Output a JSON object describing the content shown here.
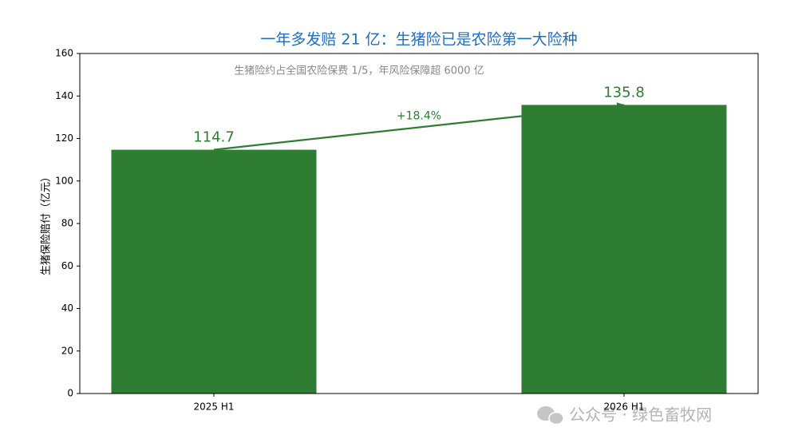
{
  "chart_data": {
    "type": "bar",
    "title": "一年多发赔 21 亿：生猪险已是农险第一大险种",
    "subtitle": "生猪险约占全国农险保费 1/5，年风险保障超 6000 亿",
    "y_label": "生猪保险赔付（亿元）",
    "categories": [
      "2025 H1",
      "2026 H1"
    ],
    "values": [
      114.7,
      135.8
    ],
    "color": "#2e7d32",
    "growth_label": "+18.4%",
    "ylim": [
      0,
      160
    ],
    "yticks": [
      0,
      20,
      40,
      60,
      80,
      100,
      120,
      140,
      160
    ],
    "grid": false
  },
  "watermark": "公众号 · 绿色畜牧网"
}
